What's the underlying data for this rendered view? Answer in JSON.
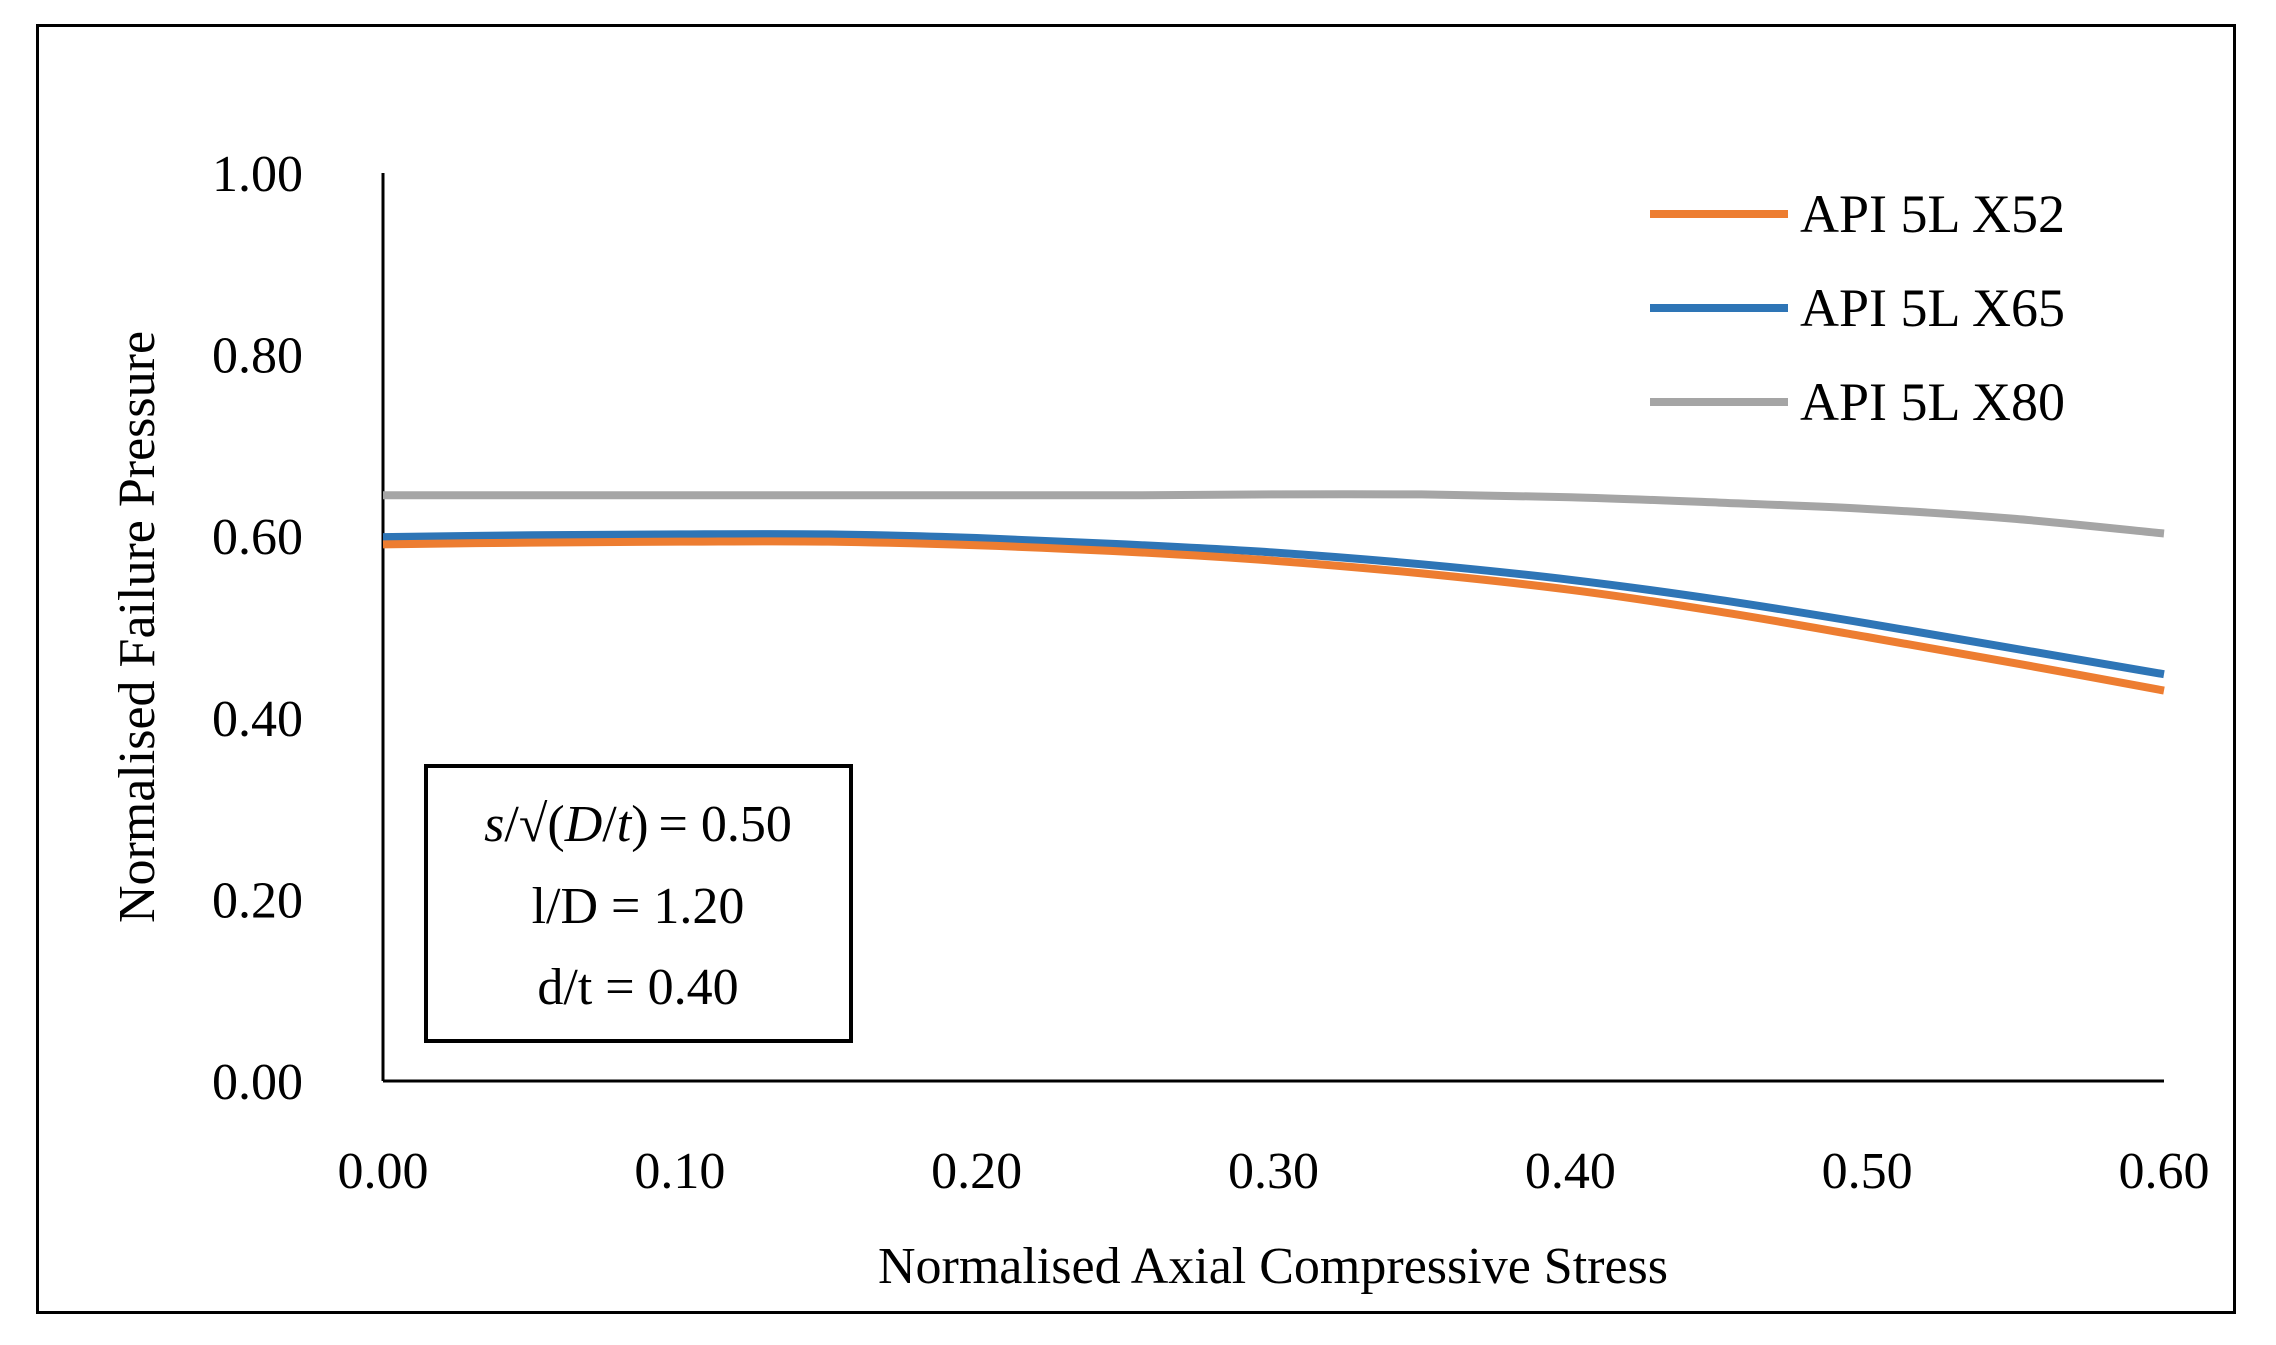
{
  "chart_data": {
    "type": "line",
    "title": "",
    "xlabel": "Normalised Axial Compressive Stress",
    "ylabel": "Normalised Failure Pressure",
    "xlim": [
      0,
      0.6
    ],
    "ylim": [
      0,
      1
    ],
    "x_ticks": [
      "0.00",
      "0.10",
      "0.20",
      "0.30",
      "0.40",
      "0.50",
      "0.60"
    ],
    "y_ticks": [
      "0.00",
      "0.20",
      "0.40",
      "0.60",
      "0.80",
      "1.00"
    ],
    "grid": false,
    "legend_position": "top-right",
    "x": [
      0.0,
      0.05,
      0.1,
      0.15,
      0.2,
      0.25,
      0.3,
      0.35,
      0.4,
      0.45,
      0.5,
      0.55,
      0.6
    ],
    "series": [
      {
        "name": "API 5L X52",
        "color": "#ED7D31",
        "values": [
          0.591,
          0.593,
          0.594,
          0.594,
          0.59,
          0.583,
          0.573,
          0.559,
          0.541,
          0.517,
          0.489,
          0.46,
          0.43
        ]
      },
      {
        "name": "API 5L X65",
        "color": "#2E75B6",
        "values": [
          0.599,
          0.601,
          0.602,
          0.602,
          0.598,
          0.591,
          0.582,
          0.569,
          0.552,
          0.53,
          0.504,
          0.476,
          0.448
        ]
      },
      {
        "name": "API 5L X80",
        "color": "#A5A5A5",
        "values": [
          0.645,
          0.645,
          0.645,
          0.645,
          0.645,
          0.645,
          0.646,
          0.646,
          0.643,
          0.637,
          0.63,
          0.619,
          0.603
        ]
      }
    ],
    "annotation_lines": [
      "= 0.50",
      "l/D = 1.20",
      "d/t = 0.40"
    ],
    "annotation_formula": {
      "s": "s",
      "slash": "/",
      "root": "√",
      "open": "(",
      "D": "D",
      "t": "t",
      "close": ")"
    }
  }
}
